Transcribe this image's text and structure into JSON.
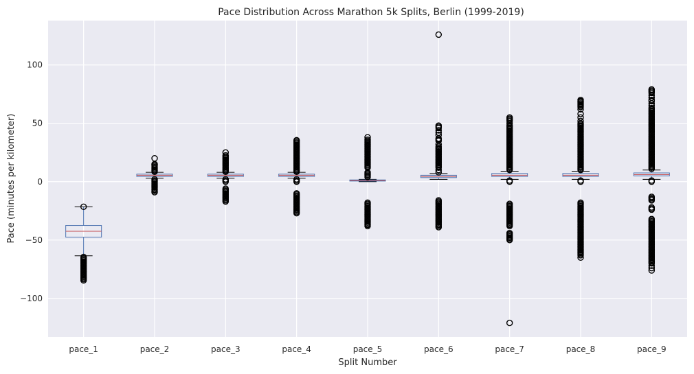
{
  "chart_data": {
    "type": "box",
    "title": "Pace Distribution Across Marathon 5k Splits, Berlin (1999-2019)",
    "xlabel": "Split Number",
    "ylabel": "Pace (minutes per kilometer)",
    "ylim": [
      -133,
      138
    ],
    "yticks": [
      -100,
      -50,
      0,
      50,
      100
    ],
    "ytick_labels": [
      "−100",
      "−50",
      "0",
      "50",
      "100"
    ],
    "grid": true,
    "categories": [
      "pace_1",
      "pace_2",
      "pace_3",
      "pace_4",
      "pace_5",
      "pace_6",
      "pace_7",
      "pace_8",
      "pace_9"
    ],
    "boxes": [
      {
        "name": "pace_1",
        "q1": -47.5,
        "median": -42.5,
        "q3": -37.5,
        "whisker_low": -63.5,
        "whisker_high": -21.5,
        "fliers": [
          -21.5,
          -64.5,
          -65.5,
          -66.5,
          -67.5,
          -68.5,
          -69.5,
          -70.5,
          -71.5,
          -72.5,
          -73.5,
          -74.5,
          -75.5,
          -76.5,
          -77.5,
          -78.5,
          -79.5,
          -80.5,
          -81.5,
          -82.5,
          -83.5,
          -84.5
        ]
      },
      {
        "name": "pace_2",
        "q1": 4.5,
        "median": 5.5,
        "q3": 6.5,
        "whisker_low": 3,
        "whisker_high": 8,
        "fliers": [
          8.5,
          9.5,
          10.5,
          11.5,
          12.5,
          13.5,
          14.5,
          15,
          20,
          2,
          1,
          0,
          -1,
          -2,
          -3,
          -4,
          -5,
          -6,
          -7,
          -8,
          -9
        ]
      },
      {
        "name": "pace_3",
        "q1": 4.5,
        "median": 5.5,
        "q3": 6.5,
        "whisker_low": 3,
        "whisker_high": 8,
        "fliers": [
          8.5,
          9.5,
          10.5,
          11.5,
          12.5,
          13.5,
          14.5,
          15.5,
          16.5,
          17.5,
          18.5,
          19.5,
          20.5,
          21.5,
          22.5,
          25,
          2,
          1,
          0,
          -6,
          -7,
          -8,
          -9,
          -10,
          -11,
          -12,
          -13,
          -14,
          -15,
          -16,
          -17
        ]
      },
      {
        "name": "pace_4",
        "q1": 4.5,
        "median": 5.5,
        "q3": 6.5,
        "whisker_low": 3,
        "whisker_high": 8,
        "fliers": [
          8.5,
          9.5,
          10.5,
          11.5,
          12.5,
          13.5,
          14.5,
          15.5,
          16.5,
          17.5,
          18.5,
          19.5,
          20.5,
          21.5,
          22.5,
          23.5,
          24.5,
          25.5,
          26.5,
          27.5,
          28.5,
          29.5,
          30.5,
          31.5,
          32.5,
          33.5,
          34.5,
          35.5,
          2,
          1,
          0,
          -10,
          -11,
          -12,
          -13,
          -14,
          -15,
          -16,
          -17,
          -18,
          -19,
          -20,
          -21,
          -22,
          -23,
          -24,
          -25,
          -26,
          -27
        ]
      },
      {
        "name": "pace_5",
        "q1": 0.5,
        "median": 1,
        "q3": 1.5,
        "whisker_low": 0,
        "whisker_high": 2,
        "fliers": [
          4,
          5,
          6,
          7,
          8,
          12,
          13,
          14,
          15,
          16,
          17,
          18,
          19,
          20,
          21,
          22,
          23,
          24,
          25,
          26,
          27,
          28,
          29,
          30,
          31,
          32,
          33,
          34,
          35,
          36,
          38,
          -18,
          -19,
          -20,
          -21,
          -22,
          -23,
          -24,
          -25,
          -26,
          -27,
          -28,
          -29,
          -30,
          -31,
          -32,
          -33,
          -34,
          -35,
          -36,
          -37,
          -38
        ]
      },
      {
        "name": "pace_6",
        "q1": 3.5,
        "median": 4.5,
        "q3": 5.5,
        "whisker_low": 2,
        "whisker_high": 7,
        "fliers": [
          8,
          10,
          12,
          13,
          14,
          15,
          16,
          17,
          18,
          19,
          20,
          21,
          22,
          23,
          24,
          25,
          26,
          27,
          28,
          29,
          30,
          32,
          35,
          36,
          37,
          40,
          42,
          44,
          46,
          47,
          48,
          126,
          -16,
          -17,
          -18,
          -19,
          -20,
          -21,
          -22,
          -23,
          -24,
          -25,
          -26,
          -27,
          -28,
          -29,
          -30,
          -31,
          -32,
          -33,
          -34,
          -35,
          -36,
          -37,
          -38,
          -39
        ]
      },
      {
        "name": "pace_7",
        "q1": 4.5,
        "median": 5.5,
        "q3": 7,
        "whisker_low": 2,
        "whisker_high": 9,
        "fliers": [
          0,
          1,
          10,
          11,
          12,
          13,
          14,
          15,
          16,
          17,
          18,
          19,
          20,
          21,
          22,
          23,
          24,
          25,
          26,
          27,
          28,
          29,
          30,
          31,
          32,
          33,
          34,
          35,
          36,
          37,
          38,
          39,
          40,
          41,
          42,
          43,
          44,
          45,
          46,
          47,
          48,
          50,
          52,
          53,
          54,
          55,
          -19,
          -20,
          -21,
          -22,
          -23,
          -24,
          -25,
          -26,
          -27,
          -28,
          -29,
          -30,
          -31,
          -32,
          -33,
          -34,
          -35,
          -36,
          -37,
          -38,
          -44,
          -45,
          -46,
          -47,
          -48,
          -49,
          -50,
          -121
        ]
      },
      {
        "name": "pace_8",
        "q1": 4.5,
        "median": 5.5,
        "q3": 7,
        "whisker_low": 2,
        "whisker_high": 9,
        "fliers": [
          0,
          1,
          10,
          11,
          12,
          13,
          14,
          15,
          16,
          17,
          18,
          19,
          20,
          21,
          22,
          23,
          24,
          25,
          26,
          27,
          28,
          29,
          30,
          31,
          32,
          33,
          34,
          35,
          36,
          37,
          38,
          39,
          40,
          41,
          42,
          43,
          44,
          45,
          46,
          47,
          48,
          49,
          50,
          52,
          55,
          58,
          62,
          64,
          65,
          66,
          67,
          68,
          69,
          70,
          -18,
          -19,
          -20,
          -21,
          -22,
          -23,
          -24,
          -25,
          -26,
          -27,
          -28,
          -29,
          -30,
          -31,
          -32,
          -33,
          -34,
          -35,
          -36,
          -37,
          -38,
          -39,
          -40,
          -41,
          -42,
          -43,
          -44,
          -45,
          -46,
          -47,
          -48,
          -49,
          -50,
          -51,
          -52,
          -53,
          -54,
          -55,
          -56,
          -57,
          -58,
          -59,
          -60,
          -61,
          -62,
          -63,
          -65
        ]
      },
      {
        "name": "pace_9",
        "q1": 5,
        "median": 6,
        "q3": 7.5,
        "whisker_low": 2,
        "whisker_high": 10,
        "fliers": [
          0,
          1,
          11,
          12,
          13,
          14,
          15,
          16,
          17,
          18,
          19,
          20,
          21,
          22,
          23,
          24,
          25,
          26,
          27,
          28,
          29,
          30,
          31,
          32,
          33,
          34,
          35,
          36,
          37,
          38,
          39,
          40,
          41,
          42,
          43,
          44,
          45,
          46,
          47,
          48,
          49,
          50,
          51,
          52,
          53,
          54,
          55,
          56,
          57,
          58,
          59,
          60,
          61,
          62,
          63,
          65,
          67,
          69,
          70,
          72,
          74,
          76,
          77,
          78,
          79,
          -13,
          -14,
          -15,
          -16,
          -22,
          -23,
          -24,
          -32,
          -33,
          -34,
          -35,
          -36,
          -37,
          -38,
          -39,
          -40,
          -41,
          -42,
          -43,
          -44,
          -45,
          -46,
          -47,
          -48,
          -49,
          -50,
          -51,
          -52,
          -53,
          -54,
          -55,
          -56,
          -57,
          -58,
          -59,
          -60,
          -61,
          -62,
          -63,
          -64,
          -65,
          -66,
          -67,
          -68,
          -69,
          -70,
          -72,
          -74,
          -76
        ]
      }
    ]
  }
}
